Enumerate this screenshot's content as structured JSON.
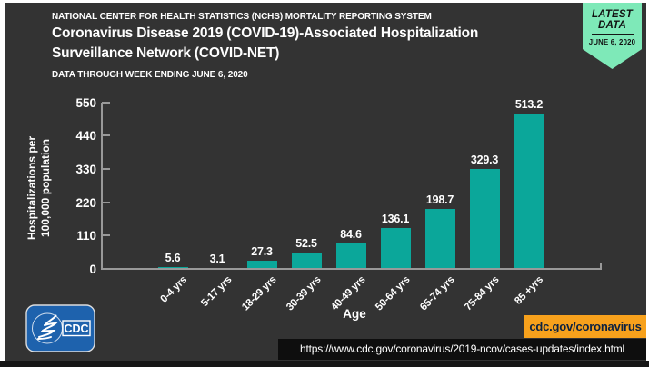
{
  "header": {
    "eyebrow": "NATIONAL CENTER FOR HEALTH STATISTICS (NCHS) MORTALITY REPORTING SYSTEM",
    "title_line1": "Coronavirus Disease 2019 (COVID-19)-Associated Hospitalization",
    "title_line2": "Surveillance Network (COVID-NET)",
    "subtitle": "DATA THROUGH WEEK ENDING JUNE 6, 2020"
  },
  "badge": {
    "line1": "LATEST",
    "line2": "DATA",
    "date": "JUNE 6, 2020"
  },
  "chart_data": {
    "type": "bar",
    "categories": [
      "0-4 yrs",
      "5-17 yrs",
      "18-29 yrs",
      "30-39 yrs",
      "40-49 yrs",
      "50-64 yrs",
      "65-74 yrs",
      "75-84 yrs",
      "85 +yrs"
    ],
    "values": [
      5.6,
      3.1,
      27.3,
      52.5,
      84.6,
      136.1,
      198.7,
      329.3,
      513.2
    ],
    "title": "",
    "xlabel": "Age",
    "ylabel": "Hospitalizations per\n100,000 population",
    "yticks": [
      0,
      110,
      220,
      330,
      440,
      550
    ],
    "ylim": [
      0,
      550
    ],
    "grid": false,
    "legend": null,
    "bar_color": "#0ba79a"
  },
  "footer": {
    "logo_text": "CDC",
    "button_label": "cdc.gov/coronavirus",
    "url": "https://www.cdc.gov/coronavirus/2019-ncov/cases-updates/index.html"
  },
  "colors": {
    "frame": "#ffffff",
    "card_bg": "#333333",
    "bar": "#0ba79a",
    "axis": "#999999",
    "text": "#ffffff",
    "badge_bg": "#7ee9b8",
    "badge_text": "#111111",
    "button_bg": "#f7a11c",
    "button_text": "#0d2240",
    "url_bg": "#0e0e0e",
    "logo_blue": "#1e62ad",
    "bottom_strip": "#161616"
  }
}
